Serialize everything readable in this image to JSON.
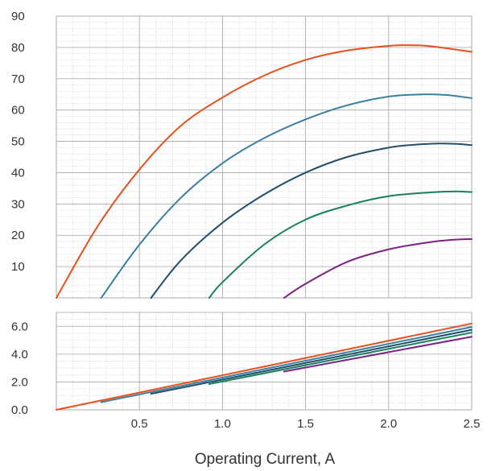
{
  "chart_data": [
    {
      "type": "line",
      "title": "",
      "xlabel": "",
      "ylabel": "",
      "xlim": [
        0,
        2.5
      ],
      "ylim": [
        0,
        90
      ],
      "yticks": [
        "90",
        "80",
        "70",
        "60",
        "50",
        "40",
        "30",
        "20",
        "10"
      ],
      "grid": true,
      "legend": "none",
      "series": [
        {
          "color": "#e8501e",
          "x": [
            0,
            0.25,
            0.5,
            0.75,
            1.0,
            1.25,
            1.5,
            1.75,
            2.0,
            2.1,
            2.25,
            2.5
          ],
          "y": [
            0,
            23,
            41,
            55,
            64,
            71,
            76,
            79,
            80.5,
            80.7,
            80.4,
            78.6
          ]
        },
        {
          "color": "#3a7fa0",
          "x": [
            0.27,
            0.5,
            0.75,
            1.0,
            1.25,
            1.5,
            1.75,
            2.0,
            2.2,
            2.35,
            2.5
          ],
          "y": [
            0,
            17,
            32,
            43,
            51,
            57,
            61.5,
            64.3,
            65,
            64.8,
            63.8
          ]
        },
        {
          "color": "#1f4e6e",
          "x": [
            0.57,
            0.75,
            1.0,
            1.25,
            1.5,
            1.75,
            2.0,
            2.15,
            2.3,
            2.4,
            2.5
          ],
          "y": [
            0,
            12,
            24,
            33,
            40,
            45,
            48,
            48.9,
            49.3,
            49.2,
            48.8
          ]
        },
        {
          "color": "#17805c",
          "x": [
            0.92,
            1.0,
            1.25,
            1.5,
            1.75,
            2.0,
            2.25,
            2.4,
            2.5
          ],
          "y": [
            0,
            5,
            17,
            25,
            29.5,
            32.5,
            33.7,
            34,
            33.8
          ]
        },
        {
          "color": "#7b2283",
          "x": [
            1.37,
            1.5,
            1.75,
            2.0,
            2.25,
            2.4,
            2.5
          ],
          "y": [
            0,
            4.5,
            11.5,
            15.5,
            17.8,
            18.6,
            18.8
          ]
        }
      ]
    },
    {
      "type": "line",
      "title": "",
      "xlabel": "Operating Current, A",
      "ylabel": "",
      "xlim": [
        0,
        2.5
      ],
      "ylim": [
        0,
        7
      ],
      "xticks": [
        "0.5",
        "1.0",
        "1.5",
        "2.0",
        "2.5"
      ],
      "yticks": [
        "6.0",
        "4.0",
        "2.0",
        "0.0"
      ],
      "grid": true,
      "legend": "none",
      "series": [
        {
          "color": "#e8501e",
          "x": [
            0,
            2.5
          ],
          "y": [
            0,
            6.2
          ]
        },
        {
          "color": "#3a7fa0",
          "x": [
            0.27,
            2.5
          ],
          "y": [
            0.55,
            5.95
          ]
        },
        {
          "color": "#1f4e6e",
          "x": [
            0.57,
            2.5
          ],
          "y": [
            1.15,
            5.75
          ]
        },
        {
          "color": "#17805c",
          "x": [
            0.92,
            2.5
          ],
          "y": [
            1.85,
            5.55
          ]
        },
        {
          "color": "#7b2283",
          "x": [
            1.37,
            2.5
          ],
          "y": [
            2.75,
            5.25
          ]
        }
      ]
    }
  ]
}
